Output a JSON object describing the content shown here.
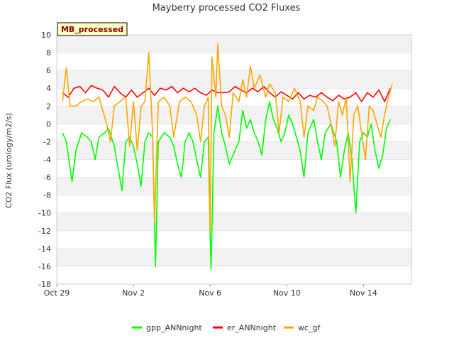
{
  "chart_data": {
    "type": "line",
    "title": "Mayberry processed CO2 Fluxes",
    "badge": "MB_processed",
    "xlabel": "",
    "ylabel": "CO2 Flux (urology/m2/s)",
    "xlim": [
      0,
      18.5
    ],
    "ylim": [
      -18,
      10
    ],
    "yticks": [
      -18,
      -16,
      -14,
      -12,
      -10,
      -8,
      -6,
      -4,
      -2,
      0,
      2,
      4,
      6,
      8,
      10
    ],
    "xticks": [
      {
        "x": 0,
        "label": "Oct 29"
      },
      {
        "x": 4,
        "label": "Nov 2"
      },
      {
        "x": 8,
        "label": "Nov 6"
      },
      {
        "x": 12,
        "label": "Nov 10"
      },
      {
        "x": 16,
        "label": "Nov 14"
      }
    ],
    "grid": true,
    "legend_position": "bottom",
    "series": [
      {
        "name": "gpp_ANNnight",
        "color": "#00ff00",
        "points": [
          [
            0.3,
            -1.0
          ],
          [
            0.5,
            -2.0
          ],
          [
            0.8,
            -6.5
          ],
          [
            1.0,
            -3.0
          ],
          [
            1.3,
            -1.0
          ],
          [
            1.6,
            -1.5
          ],
          [
            1.8,
            -2.0
          ],
          [
            2.0,
            -4.0
          ],
          [
            2.2,
            -1.5
          ],
          [
            2.5,
            -1.0
          ],
          [
            2.7,
            -0.5
          ],
          [
            3.0,
            -2.5
          ],
          [
            3.2,
            -5.0
          ],
          [
            3.4,
            -7.5
          ],
          [
            3.6,
            -2.0
          ],
          [
            3.8,
            -1.5
          ],
          [
            4.0,
            -2.5
          ],
          [
            4.2,
            -4.5
          ],
          [
            4.4,
            -7.0
          ],
          [
            4.6,
            -2.0
          ],
          [
            4.8,
            -1.0
          ],
          [
            5.0,
            -1.5
          ],
          [
            5.1,
            -11.0
          ],
          [
            5.15,
            -16.0
          ],
          [
            5.3,
            -2.0
          ],
          [
            5.6,
            -1.0
          ],
          [
            5.9,
            -1.5
          ],
          [
            6.1,
            -2.5
          ],
          [
            6.3,
            -4.5
          ],
          [
            6.5,
            -6.0
          ],
          [
            6.7,
            -2.0
          ],
          [
            6.9,
            -1.0
          ],
          [
            7.1,
            -2.0
          ],
          [
            7.3,
            -4.0
          ],
          [
            7.5,
            -6.0
          ],
          [
            7.7,
            -2.0
          ],
          [
            7.9,
            -1.5
          ],
          [
            8.0,
            -12.5
          ],
          [
            8.05,
            -16.3
          ],
          [
            8.2,
            -1.0
          ],
          [
            8.4,
            2.0
          ],
          [
            8.6,
            -1.0
          ],
          [
            8.8,
            -2.5
          ],
          [
            9.0,
            -4.5
          ],
          [
            9.2,
            -3.5
          ],
          [
            9.5,
            -2.0
          ],
          [
            9.7,
            1.5
          ],
          [
            9.9,
            -0.5
          ],
          [
            10.1,
            0.5
          ],
          [
            10.3,
            -1.0
          ],
          [
            10.5,
            -2.0
          ],
          [
            10.7,
            -3.5
          ],
          [
            10.9,
            0.5
          ],
          [
            11.1,
            2.5
          ],
          [
            11.3,
            0.5
          ],
          [
            11.5,
            -0.5
          ],
          [
            11.7,
            -2.0
          ],
          [
            11.9,
            -1.0
          ],
          [
            12.1,
            1.0
          ],
          [
            12.3,
            0.0
          ],
          [
            12.5,
            -1.5
          ],
          [
            12.7,
            -3.0
          ],
          [
            12.9,
            -6.0
          ],
          [
            13.1,
            -1.0
          ],
          [
            13.4,
            0.5
          ],
          [
            13.6,
            -2.0
          ],
          [
            13.8,
            -4.0
          ],
          [
            14.0,
            -1.0
          ],
          [
            14.3,
            0.0
          ],
          [
            14.6,
            -2.0
          ],
          [
            14.8,
            -6.0
          ],
          [
            15.0,
            -3.0
          ],
          [
            15.2,
            -1.0
          ],
          [
            15.4,
            -4.0
          ],
          [
            15.6,
            -10.0
          ],
          [
            15.8,
            -2.0
          ],
          [
            16.0,
            -1.0
          ],
          [
            16.2,
            -1.5
          ],
          [
            16.4,
            0.0
          ],
          [
            16.6,
            -3.0
          ],
          [
            16.8,
            -5.0
          ],
          [
            17.0,
            -3.5
          ],
          [
            17.2,
            -0.5
          ],
          [
            17.4,
            0.5
          ]
        ]
      },
      {
        "name": "er_ANNnight",
        "color": "#ff0000",
        "points": [
          [
            0.3,
            3.5
          ],
          [
            0.6,
            3.0
          ],
          [
            0.9,
            4.0
          ],
          [
            1.2,
            4.2
          ],
          [
            1.5,
            3.5
          ],
          [
            1.8,
            4.3
          ],
          [
            2.1,
            4.0
          ],
          [
            2.4,
            3.8
          ],
          [
            2.7,
            3.0
          ],
          [
            3.0,
            4.2
          ],
          [
            3.3,
            3.5
          ],
          [
            3.6,
            3.0
          ],
          [
            3.9,
            3.8
          ],
          [
            4.2,
            3.0
          ],
          [
            4.5,
            3.5
          ],
          [
            4.8,
            4.0
          ],
          [
            5.1,
            3.2
          ],
          [
            5.4,
            4.0
          ],
          [
            5.7,
            3.8
          ],
          [
            6.0,
            4.2
          ],
          [
            6.3,
            3.5
          ],
          [
            6.6,
            4.0
          ],
          [
            6.9,
            3.6
          ],
          [
            7.2,
            4.0
          ],
          [
            7.5,
            3.5
          ],
          [
            7.8,
            3.2
          ],
          [
            8.1,
            3.8
          ],
          [
            8.4,
            3.5
          ],
          [
            8.7,
            3.5
          ],
          [
            9.0,
            3.6
          ],
          [
            9.3,
            4.2
          ],
          [
            9.6,
            3.8
          ],
          [
            9.9,
            3.5
          ],
          [
            10.2,
            4.0
          ],
          [
            10.5,
            3.6
          ],
          [
            10.8,
            4.2
          ],
          [
            11.1,
            3.5
          ],
          [
            11.4,
            3.0
          ],
          [
            11.7,
            3.6
          ],
          [
            12.0,
            3.2
          ],
          [
            12.3,
            2.8
          ],
          [
            12.6,
            3.5
          ],
          [
            12.9,
            2.8
          ],
          [
            13.2,
            3.2
          ],
          [
            13.5,
            3.0
          ],
          [
            13.8,
            3.5
          ],
          [
            14.1,
            3.0
          ],
          [
            14.4,
            2.6
          ],
          [
            14.7,
            3.2
          ],
          [
            15.0,
            2.8
          ],
          [
            15.3,
            3.0
          ],
          [
            15.6,
            3.5
          ],
          [
            15.9,
            2.5
          ],
          [
            16.2,
            3.5
          ],
          [
            16.5,
            3.0
          ],
          [
            16.8,
            3.8
          ],
          [
            17.1,
            2.5
          ],
          [
            17.4,
            4.0
          ]
        ]
      },
      {
        "name": "wc_gf",
        "color": "#ffa500",
        "points": [
          [
            0.3,
            2.5
          ],
          [
            0.5,
            6.3
          ],
          [
            0.7,
            2.0
          ],
          [
            1.0,
            2.0
          ],
          [
            1.3,
            2.5
          ],
          [
            1.6,
            2.8
          ],
          [
            1.9,
            2.5
          ],
          [
            2.2,
            3.0
          ],
          [
            2.4,
            1.5
          ],
          [
            2.6,
            0.0
          ],
          [
            2.8,
            -2.0
          ],
          [
            3.0,
            2.0
          ],
          [
            3.3,
            2.5
          ],
          [
            3.6,
            3.0
          ],
          [
            3.8,
            -2.5
          ],
          [
            4.0,
            2.5
          ],
          [
            4.2,
            -3.0
          ],
          [
            4.4,
            2.0
          ],
          [
            4.6,
            2.5
          ],
          [
            4.8,
            8.0
          ],
          [
            5.0,
            -1.0
          ],
          [
            5.1,
            -11.0
          ],
          [
            5.3,
            2.5
          ],
          [
            5.6,
            3.0
          ],
          [
            5.9,
            2.0
          ],
          [
            6.1,
            -1.5
          ],
          [
            6.4,
            2.5
          ],
          [
            6.7,
            3.0
          ],
          [
            7.0,
            2.5
          ],
          [
            7.3,
            1.0
          ],
          [
            7.5,
            -2.0
          ],
          [
            7.7,
            2.0
          ],
          [
            7.9,
            3.0
          ],
          [
            8.0,
            -12.0
          ],
          [
            8.1,
            7.5
          ],
          [
            8.3,
            3.0
          ],
          [
            8.4,
            9.0
          ],
          [
            8.6,
            2.0
          ],
          [
            8.8,
            1.0
          ],
          [
            9.0,
            -1.5
          ],
          [
            9.2,
            3.5
          ],
          [
            9.5,
            2.5
          ],
          [
            9.7,
            5.0
          ],
          [
            9.9,
            3.0
          ],
          [
            10.1,
            6.5
          ],
          [
            10.3,
            4.0
          ],
          [
            10.6,
            5.5
          ],
          [
            10.9,
            3.0
          ],
          [
            11.1,
            4.5
          ],
          [
            11.4,
            3.5
          ],
          [
            11.6,
            -1.0
          ],
          [
            11.8,
            3.0
          ],
          [
            12.1,
            2.5
          ],
          [
            12.4,
            4.0
          ],
          [
            12.7,
            2.5
          ],
          [
            12.9,
            -1.5
          ],
          [
            13.1,
            2.0
          ],
          [
            13.4,
            1.5
          ],
          [
            13.6,
            3.0
          ],
          [
            13.9,
            2.5
          ],
          [
            14.1,
            2.0
          ],
          [
            14.3,
            0.0
          ],
          [
            14.5,
            -2.5
          ],
          [
            14.7,
            2.5
          ],
          [
            14.9,
            1.0
          ],
          [
            15.1,
            3.0
          ],
          [
            15.3,
            -6.5
          ],
          [
            15.5,
            1.0
          ],
          [
            15.7,
            2.0
          ],
          [
            15.9,
            -1.0
          ],
          [
            16.1,
            -4.0
          ],
          [
            16.3,
            2.0
          ],
          [
            16.5,
            1.5
          ],
          [
            16.7,
            0.0
          ],
          [
            16.9,
            -1.5
          ],
          [
            17.1,
            1.0
          ],
          [
            17.3,
            3.0
          ],
          [
            17.5,
            4.5
          ]
        ]
      }
    ]
  }
}
